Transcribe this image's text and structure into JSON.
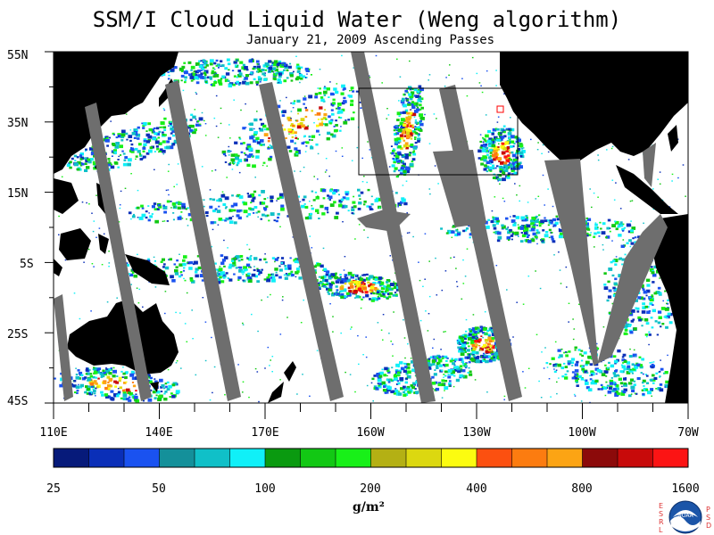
{
  "header": {
    "title": "SSM/I Cloud Liquid Water (Weng algorithm)",
    "subtitle": "January 21, 2009  Ascending Passes"
  },
  "map": {
    "lat_labels": [
      "55N",
      "35N",
      "15N",
      "5S",
      "25S",
      "45S"
    ],
    "lon_labels": [
      "110E",
      "140E",
      "170E",
      "160W",
      "130W",
      "100W",
      "70W"
    ],
    "colors": {
      "land": "#000000",
      "no_data_swath_gap": "#6e6e6e",
      "ocean_background": "#ffffff",
      "highlight_box": "#000000",
      "small_box": "#ff0000"
    }
  },
  "colorbar": {
    "tick_labels": [
      "25",
      "50",
      "100",
      "200",
      "400",
      "800",
      "1600"
    ],
    "unit": "g/m²",
    "colors": [
      "#061a7a",
      "#0a2fb8",
      "#1a52f0",
      "#14909a",
      "#10c0c8",
      "#10f0f8",
      "#0a9a10",
      "#12c814",
      "#18f018",
      "#b4b014",
      "#dcd810",
      "#fcfc10",
      "#fc5010",
      "#fc7c10",
      "#fca414",
      "#8c0a0a",
      "#c80a0a",
      "#fc1414"
    ]
  },
  "logo": {
    "left_letters": [
      "E",
      "S",
      "R",
      "L"
    ],
    "right_letters": [
      "P",
      "S",
      "D"
    ],
    "text": "NOAA"
  }
}
